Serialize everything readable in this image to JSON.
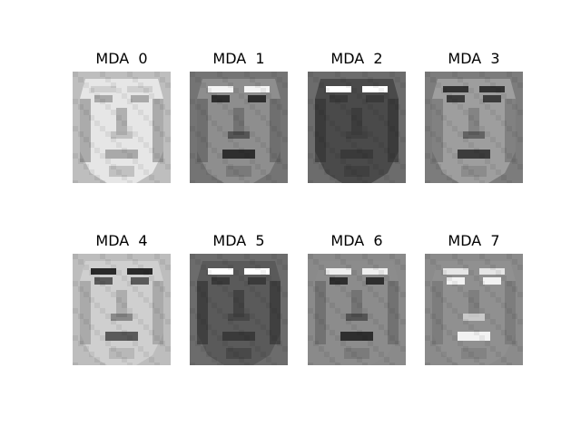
{
  "figure": {
    "panels": [
      {
        "title": "MDA  0",
        "background": "#bebebe",
        "face_tone": "#e6e6e6",
        "shadow_tone": "#7a7a7a",
        "feature_tone": "#a9a9a9",
        "brow_tone": "#cfcfcf"
      },
      {
        "title": "MDA  1",
        "background": "#747474",
        "face_tone": "#8e8e8e",
        "shadow_tone": "#555555",
        "feature_tone": "#2e2e2e",
        "brow_tone": "#f4f4f4"
      },
      {
        "title": "MDA  2",
        "background": "#6c6c6c",
        "face_tone": "#4a4a4a",
        "shadow_tone": "#2f2f2f",
        "feature_tone": "#3a3a3a",
        "brow_tone": "#ffffff"
      },
      {
        "title": "MDA  3",
        "background": "#7c7c7c",
        "face_tone": "#9e9e9e",
        "shadow_tone": "#6a6a6a",
        "feature_tone": "#3c3c3c",
        "brow_tone": "#333333"
      },
      {
        "title": "MDA  4",
        "background": "#bdbdbd",
        "face_tone": "#cfcfcf",
        "shadow_tone": "#8c8c8c",
        "feature_tone": "#5a5a5a",
        "brow_tone": "#2a2a2a"
      },
      {
        "title": "MDA  5",
        "background": "#6c6c6c",
        "face_tone": "#5a5a5a",
        "shadow_tone": "#2c2c2c",
        "feature_tone": "#3a3a3a",
        "brow_tone": "#ffffff"
      },
      {
        "title": "MDA  6",
        "background": "#8a8a8a",
        "face_tone": "#8c8c8c",
        "shadow_tone": "#5c5c5c",
        "feature_tone": "#2e2e2e",
        "brow_tone": "#efefef"
      },
      {
        "title": "MDA  7",
        "background": "#8b8b8b",
        "face_tone": "#909090",
        "shadow_tone": "#6e6e6e",
        "feature_tone": "#f2f2f2",
        "brow_tone": "#e6e6e6"
      }
    ]
  }
}
